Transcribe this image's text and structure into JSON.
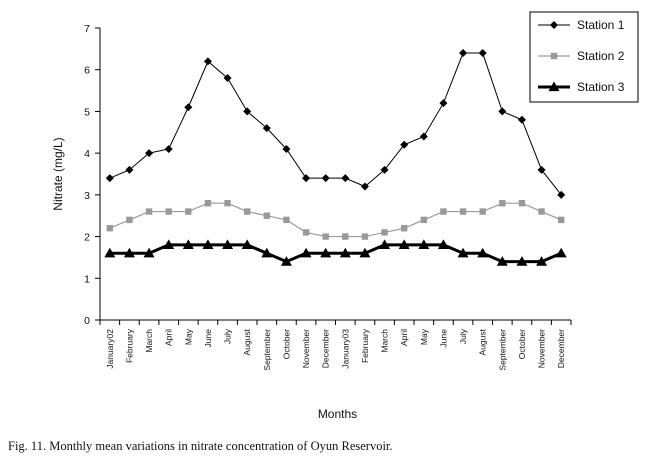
{
  "caption": "Fig. 11. Monthly mean variations in nitrate concentration of Oyun Reservoir.",
  "chart_data": {
    "type": "line",
    "xlabel": "Months",
    "ylabel": "Nitrate (mg/L)",
    "ylim": [
      0,
      7
    ],
    "yticks": [
      0,
      1,
      2,
      3,
      4,
      5,
      6,
      7
    ],
    "grid": false,
    "legend_position": "top-right",
    "categories": [
      "January02",
      "February",
      "March",
      "April",
      "May",
      "June",
      "July",
      "August",
      "September",
      "October",
      "November",
      "December",
      "January03",
      "February",
      "March",
      "April",
      "May",
      "June",
      "July",
      "August",
      "September",
      "October",
      "November",
      "December"
    ],
    "series": [
      {
        "name": "Station 1",
        "color": "#000000",
        "marker": "diamond",
        "values": [
          3.4,
          3.6,
          4.0,
          4.1,
          5.1,
          6.2,
          5.8,
          5.0,
          4.6,
          4.1,
          3.4,
          3.4,
          3.4,
          3.2,
          3.6,
          4.2,
          4.4,
          5.2,
          6.4,
          6.4,
          5.0,
          4.8,
          3.6,
          3.0
        ]
      },
      {
        "name": "Station 2",
        "color": "#999999",
        "marker": "square",
        "values": [
          2.2,
          2.4,
          2.6,
          2.6,
          2.6,
          2.8,
          2.8,
          2.6,
          2.5,
          2.4,
          2.1,
          2.0,
          2.0,
          2.0,
          2.1,
          2.2,
          2.4,
          2.6,
          2.6,
          2.6,
          2.8,
          2.8,
          2.6,
          2.4
        ]
      },
      {
        "name": "Station 3",
        "color": "#000000",
        "marker": "triangle",
        "values": [
          1.6,
          1.6,
          1.6,
          1.8,
          1.8,
          1.8,
          1.8,
          1.8,
          1.6,
          1.4,
          1.6,
          1.6,
          1.6,
          1.6,
          1.8,
          1.8,
          1.8,
          1.8,
          1.6,
          1.6,
          1.4,
          1.4,
          1.4,
          1.6
        ]
      }
    ]
  }
}
